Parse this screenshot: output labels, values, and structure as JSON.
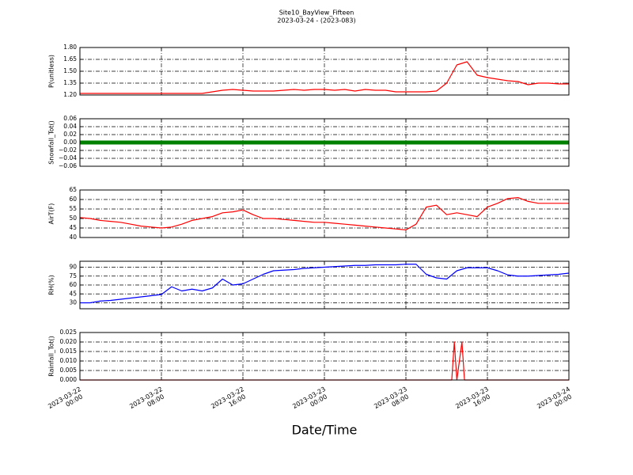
{
  "title": "Site10_BayView_Fifteen",
  "subtitle": "2023-03-24 - (2023-083)",
  "xlabel": "Date/Time",
  "chart_data": [
    {
      "type": "line",
      "ylabel": "P(unitless)",
      "color": "#ff0000",
      "grid": true,
      "xlim": [
        "2023-03-22 00:00",
        "2023-03-24 00:00"
      ],
      "ylim": [
        1.2,
        1.8
      ],
      "yticks": [
        {
          "value": 1.2,
          "label": "1.20"
        },
        1.35,
        {
          "value": 1.5,
          "label": "1.50"
        },
        1.65,
        {
          "value": 1.8,
          "label": "1.80"
        }
      ],
      "x": [
        "2023-03-22 00:00",
        "2023-03-22 01:00",
        "2023-03-22 02:00",
        "2023-03-22 03:00",
        "2023-03-22 04:00",
        "2023-03-22 05:00",
        "2023-03-22 06:00",
        "2023-03-22 07:00",
        "2023-03-22 08:00",
        "2023-03-22 09:00",
        "2023-03-22 10:00",
        "2023-03-22 11:00",
        "2023-03-22 12:00",
        "2023-03-22 13:00",
        "2023-03-22 14:00",
        "2023-03-22 15:00",
        "2023-03-22 16:00",
        "2023-03-22 17:00",
        "2023-03-22 18:00",
        "2023-03-22 19:00",
        "2023-03-22 20:00",
        "2023-03-22 21:00",
        "2023-03-22 22:00",
        "2023-03-22 23:00",
        "2023-03-23 00:00",
        "2023-03-23 01:00",
        "2023-03-23 02:00",
        "2023-03-23 03:00",
        "2023-03-23 04:00",
        "2023-03-23 05:00",
        "2023-03-23 06:00",
        "2023-03-23 07:00",
        "2023-03-23 08:00",
        "2023-03-23 09:00",
        "2023-03-23 10:00",
        "2023-03-23 11:00",
        "2023-03-23 12:00",
        "2023-03-23 13:00",
        "2023-03-23 14:00",
        "2023-03-23 15:00",
        "2023-03-23 16:00",
        "2023-03-23 17:00",
        "2023-03-23 18:00",
        "2023-03-23 19:00",
        "2023-03-23 20:00",
        "2023-03-23 21:00",
        "2023-03-23 22:00",
        "2023-03-23 23:00",
        "2023-03-24 00:00"
      ],
      "values": [
        1.22,
        1.22,
        1.22,
        1.22,
        1.22,
        1.22,
        1.22,
        1.22,
        1.22,
        1.22,
        1.22,
        1.22,
        1.22,
        1.24,
        1.26,
        1.27,
        1.26,
        1.25,
        1.25,
        1.25,
        1.26,
        1.27,
        1.26,
        1.27,
        1.27,
        1.26,
        1.27,
        1.25,
        1.27,
        1.26,
        1.26,
        1.24,
        1.24,
        1.24,
        1.24,
        1.25,
        1.35,
        1.58,
        1.62,
        1.45,
        1.42,
        1.4,
        1.38,
        1.37,
        1.33,
        1.35,
        1.35,
        1.34,
        1.34
      ]
    },
    {
      "type": "line",
      "ylabel": "Snowfall_Tot()",
      "color": "#008000",
      "grid": true,
      "xlim": [
        "2023-03-22 00:00",
        "2023-03-24 00:00"
      ],
      "ylim": [
        -0.06,
        0.06
      ],
      "yticks": [
        {
          "value": -0.06,
          "label": "−0.06"
        },
        {
          "value": -0.04,
          "label": "−0.04"
        },
        {
          "value": -0.02,
          "label": "−0.02"
        },
        {
          "value": 0,
          "label": "0.00"
        },
        {
          "value": 0.02,
          "label": "0.02"
        },
        {
          "value": 0.04,
          "label": "0.04"
        },
        {
          "value": 0.06,
          "label": "0.06"
        }
      ],
      "x": [
        "2023-03-22 00:00",
        "2023-03-22 01:00",
        "2023-03-22 02:00",
        "2023-03-22 03:00",
        "2023-03-22 04:00",
        "2023-03-22 05:00",
        "2023-03-22 06:00",
        "2023-03-22 07:00",
        "2023-03-22 08:00",
        "2023-03-22 09:00",
        "2023-03-22 10:00",
        "2023-03-22 11:00",
        "2023-03-22 12:00",
        "2023-03-22 13:00",
        "2023-03-22 14:00",
        "2023-03-22 15:00",
        "2023-03-22 16:00",
        "2023-03-22 17:00",
        "2023-03-22 18:00",
        "2023-03-22 19:00",
        "2023-03-22 20:00",
        "2023-03-22 21:00",
        "2023-03-22 22:00",
        "2023-03-22 23:00",
        "2023-03-23 00:00",
        "2023-03-23 01:00",
        "2023-03-23 02:00",
        "2023-03-23 03:00",
        "2023-03-23 04:00",
        "2023-03-23 05:00",
        "2023-03-23 06:00",
        "2023-03-23 07:00",
        "2023-03-23 08:00",
        "2023-03-23 09:00",
        "2023-03-23 10:00",
        "2023-03-23 11:00",
        "2023-03-23 12:00",
        "2023-03-23 13:00",
        "2023-03-23 14:00",
        "2023-03-23 15:00",
        "2023-03-23 16:00",
        "2023-03-23 17:00",
        "2023-03-23 18:00",
        "2023-03-23 19:00",
        "2023-03-23 20:00",
        "2023-03-23 21:00",
        "2023-03-23 22:00",
        "2023-03-23 23:00",
        "2023-03-24 00:00"
      ],
      "values": [
        0,
        0,
        0,
        0,
        0,
        0,
        0,
        0,
        0,
        0,
        0,
        0,
        0,
        0,
        0,
        0,
        0,
        0,
        0,
        0,
        0,
        0,
        0,
        0,
        0,
        0,
        0,
        0,
        0,
        0,
        0,
        0,
        0,
        0,
        0,
        0,
        0,
        0,
        0,
        0,
        0,
        0,
        0,
        0,
        0,
        0,
        0,
        0,
        0
      ]
    },
    {
      "type": "line",
      "ylabel": "AirT(F)",
      "color": "#ff0000",
      "grid": true,
      "xlim": [
        "2023-03-22 00:00",
        "2023-03-24 00:00"
      ],
      "ylim": [
        40,
        65
      ],
      "yticks": [
        40,
        45,
        50,
        55,
        60,
        65
      ],
      "x": [
        "2023-03-22 00:00",
        "2023-03-22 01:00",
        "2023-03-22 02:00",
        "2023-03-22 03:00",
        "2023-03-22 04:00",
        "2023-03-22 05:00",
        "2023-03-22 06:00",
        "2023-03-22 07:00",
        "2023-03-22 08:00",
        "2023-03-22 09:00",
        "2023-03-22 10:00",
        "2023-03-22 11:00",
        "2023-03-22 12:00",
        "2023-03-22 13:00",
        "2023-03-22 14:00",
        "2023-03-22 15:00",
        "2023-03-22 16:00",
        "2023-03-22 17:00",
        "2023-03-22 18:00",
        "2023-03-22 19:00",
        "2023-03-22 20:00",
        "2023-03-22 21:00",
        "2023-03-22 22:00",
        "2023-03-22 23:00",
        "2023-03-23 00:00",
        "2023-03-23 01:00",
        "2023-03-23 02:00",
        "2023-03-23 03:00",
        "2023-03-23 04:00",
        "2023-03-23 05:00",
        "2023-03-23 06:00",
        "2023-03-23 07:00",
        "2023-03-23 08:00",
        "2023-03-23 09:00",
        "2023-03-23 10:00",
        "2023-03-23 11:00",
        "2023-03-23 12:00",
        "2023-03-23 13:00",
        "2023-03-23 14:00",
        "2023-03-23 15:00",
        "2023-03-23 16:00",
        "2023-03-23 17:00",
        "2023-03-23 18:00",
        "2023-03-23 19:00",
        "2023-03-23 20:00",
        "2023-03-23 21:00",
        "2023-03-23 22:00",
        "2023-03-23 23:00",
        "2023-03-24 00:00"
      ],
      "values": [
        50.5,
        50,
        49,
        48.5,
        48,
        47,
        46,
        45.5,
        45,
        45.5,
        47,
        49,
        50,
        51,
        53,
        53.5,
        54.5,
        52,
        50,
        50,
        49.5,
        49,
        48.5,
        48,
        48,
        47.5,
        47,
        46.5,
        46,
        45.5,
        45,
        44.5,
        44,
        47,
        56,
        57,
        52,
        53,
        52,
        51,
        56,
        58,
        60.5,
        61,
        59,
        58,
        58,
        58,
        58
      ]
    },
    {
      "type": "line",
      "ylabel": "RH(%)",
      "color": "#0000ff",
      "grid": true,
      "xlim": [
        "2023-03-22 00:00",
        "2023-03-24 00:00"
      ],
      "ylim": [
        20,
        100
      ],
      "yticks": [
        30,
        45,
        60,
        75,
        90
      ],
      "x": [
        "2023-03-22 00:00",
        "2023-03-22 01:00",
        "2023-03-22 02:00",
        "2023-03-22 03:00",
        "2023-03-22 04:00",
        "2023-03-22 05:00",
        "2023-03-22 06:00",
        "2023-03-22 07:00",
        "2023-03-22 08:00",
        "2023-03-22 09:00",
        "2023-03-22 10:00",
        "2023-03-22 11:00",
        "2023-03-22 12:00",
        "2023-03-22 13:00",
        "2023-03-22 14:00",
        "2023-03-22 15:00",
        "2023-03-22 16:00",
        "2023-03-22 17:00",
        "2023-03-22 18:00",
        "2023-03-22 19:00",
        "2023-03-22 20:00",
        "2023-03-22 21:00",
        "2023-03-22 22:00",
        "2023-03-22 23:00",
        "2023-03-23 00:00",
        "2023-03-23 01:00",
        "2023-03-23 02:00",
        "2023-03-23 03:00",
        "2023-03-23 04:00",
        "2023-03-23 05:00",
        "2023-03-23 06:00",
        "2023-03-23 07:00",
        "2023-03-23 08:00",
        "2023-03-23 09:00",
        "2023-03-23 10:00",
        "2023-03-23 11:00",
        "2023-03-23 12:00",
        "2023-03-23 13:00",
        "2023-03-23 14:00",
        "2023-03-23 15:00",
        "2023-03-23 16:00",
        "2023-03-23 17:00",
        "2023-03-23 18:00",
        "2023-03-23 19:00",
        "2023-03-23 20:00",
        "2023-03-23 21:00",
        "2023-03-23 22:00",
        "2023-03-23 23:00",
        "2023-03-24 00:00"
      ],
      "values": [
        30,
        30,
        33,
        34,
        36,
        38,
        40,
        42,
        44,
        57,
        50,
        53,
        50,
        55,
        70,
        60,
        62,
        70,
        78,
        84,
        85,
        86,
        88,
        89,
        90,
        91,
        92,
        93,
        93,
        94,
        94,
        94,
        95,
        95,
        78,
        72,
        70,
        84,
        89,
        89,
        89,
        84,
        77,
        75,
        75,
        76,
        77,
        78,
        80
      ]
    },
    {
      "type": "line",
      "ylabel": "Rainfall_Tot()",
      "color": "#ff0000",
      "grid": true,
      "xlim": [
        "2023-03-22 00:00",
        "2023-03-24 00:00"
      ],
      "ylim": [
        0,
        0.025
      ],
      "yticks": [
        {
          "value": 0,
          "label": "0.000"
        },
        {
          "value": 0.005,
          "label": "0.005"
        },
        {
          "value": 0.01,
          "label": "0.010"
        },
        {
          "value": 0.015,
          "label": "0.015"
        },
        {
          "value": 0.02,
          "label": "0.020"
        },
        {
          "value": 0.025,
          "label": "0.025"
        }
      ],
      "xticks": [
        "2023-03-22 00:00",
        "2023-03-22 08:00",
        "2023-03-22 16:00",
        "2023-03-23 00:00",
        "2023-03-23 08:00",
        "2023-03-23 16:00",
        "2023-03-24 00:00"
      ],
      "x": [
        "2023-03-22 00:00",
        "2023-03-23 12:30",
        "2023-03-23 12:45",
        "2023-03-23 13:00",
        "2023-03-23 13:30",
        "2023-03-23 13:45",
        "2023-03-24 00:00"
      ],
      "values": [
        0,
        0,
        0.02,
        0,
        0.02,
        0,
        0
      ]
    }
  ]
}
